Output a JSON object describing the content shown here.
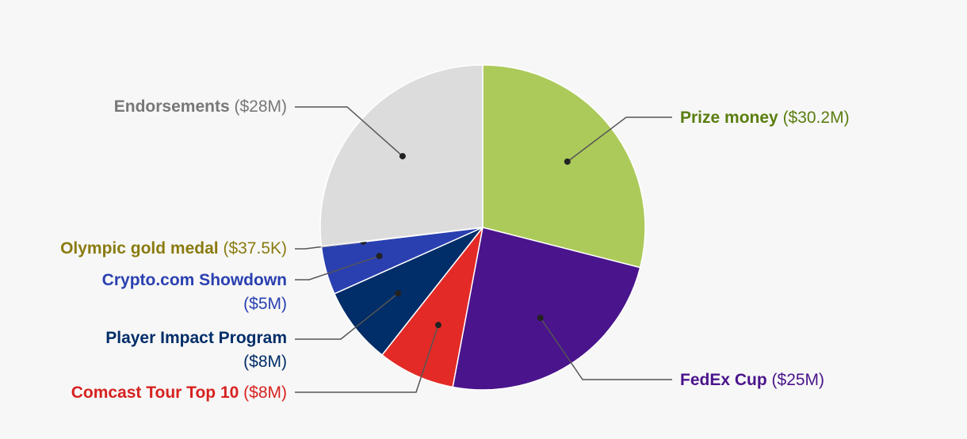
{
  "chart_data": {
    "type": "pie",
    "title": "",
    "slices": [
      {
        "name": "Prize money",
        "value_label": "($30.2M)",
        "value": 30.2,
        "color": "#acca5a",
        "text_color": "#5a7d0f"
      },
      {
        "name": "FedEx Cup",
        "value_label": "($25M)",
        "value": 25,
        "color": "#4a148c",
        "text_color": "#4a148c"
      },
      {
        "name": "Comcast Tour Top 10",
        "value_label": "($8M)",
        "value": 8,
        "color": "#e32a27",
        "text_color": "#d7221f"
      },
      {
        "name": "Player Impact Program",
        "value_label": "($8M)",
        "value": 8,
        "color": "#012d68",
        "text_color": "#012d68"
      },
      {
        "name": "Crypto.com Showdown",
        "value_label": "($5M)",
        "value": 5,
        "color": "#2a40b0",
        "text_color": "#2a40b0"
      },
      {
        "name": "Olympic gold medal",
        "value_label": "($37.5K)",
        "value": 0.0375,
        "color": "#8a7b10",
        "text_color": "#8a7b10"
      },
      {
        "name": "Endorsements",
        "value_label": "($28M)",
        "value": 28,
        "color": "#dcdcdc",
        "text_color": "#777777"
      }
    ]
  }
}
